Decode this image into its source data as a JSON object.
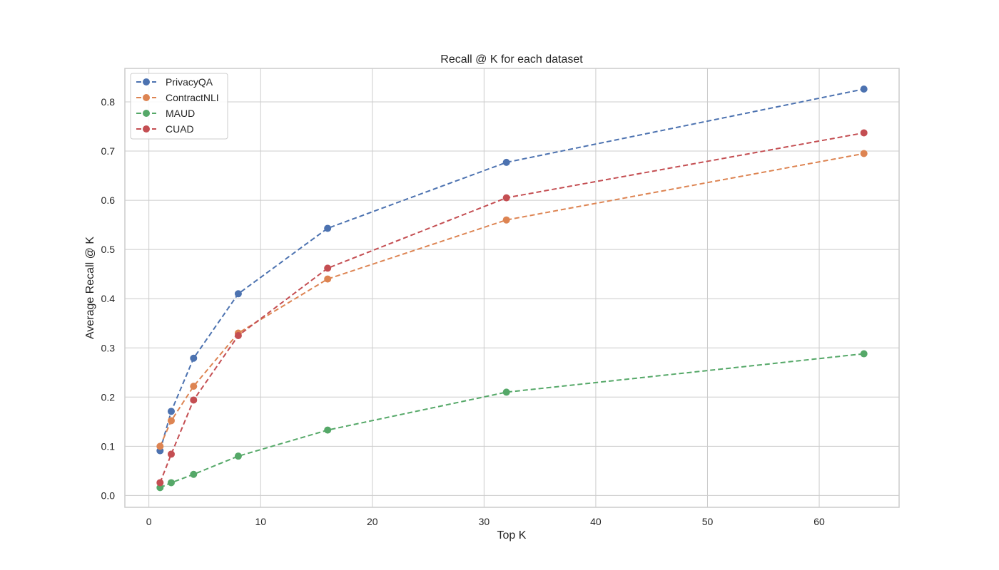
{
  "chart_data": {
    "type": "line",
    "title": "Recall @ K for each dataset",
    "xlabel": "Top K",
    "ylabel": "Average Recall @ K",
    "x": [
      1,
      2,
      4,
      8,
      16,
      32,
      64
    ],
    "xlim": [
      -2.15,
      67.15
    ],
    "ylim": [
      -0.024,
      0.868
    ],
    "xticks": [
      0,
      10,
      20,
      30,
      40,
      50,
      60
    ],
    "xtick_labels": [
      "0",
      "10",
      "20",
      "30",
      "40",
      "50",
      "60"
    ],
    "yticks": [
      0.0,
      0.1,
      0.2,
      0.3,
      0.4,
      0.5,
      0.6,
      0.7,
      0.8
    ],
    "ytick_labels": [
      "0.0",
      "0.1",
      "0.2",
      "0.3",
      "0.4",
      "0.5",
      "0.6",
      "0.7",
      "0.8"
    ],
    "grid": true,
    "legend_position": "upper left",
    "line_style": "dashed",
    "marker": "circle",
    "series": [
      {
        "name": "PrivacyQA",
        "color": "#4c72b0",
        "values": [
          0.091,
          0.171,
          0.279,
          0.41,
          0.543,
          0.677,
          0.826
        ]
      },
      {
        "name": "ContractNLI",
        "color": "#dd8452",
        "values": [
          0.1,
          0.152,
          0.222,
          0.33,
          0.44,
          0.56,
          0.695
        ]
      },
      {
        "name": "MAUD",
        "color": "#55a868",
        "values": [
          0.016,
          0.026,
          0.043,
          0.08,
          0.133,
          0.21,
          0.288
        ]
      },
      {
        "name": "CUAD",
        "color": "#c44e52",
        "values": [
          0.026,
          0.084,
          0.194,
          0.325,
          0.462,
          0.605,
          0.737
        ]
      }
    ]
  },
  "colors": {
    "grid": "#cccccc",
    "spine": "#cccccc",
    "background": "#ffffff",
    "text": "#262626"
  }
}
